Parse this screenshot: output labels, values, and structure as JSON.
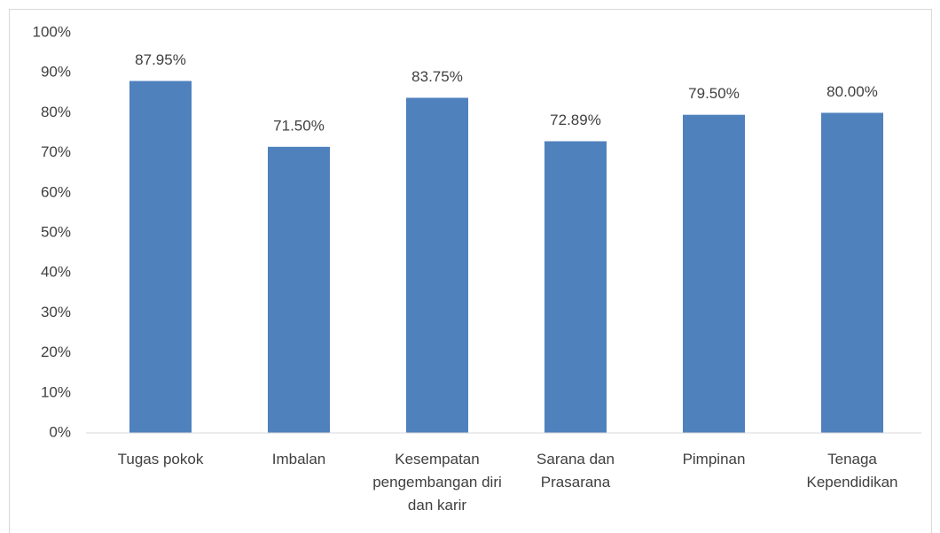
{
  "chart_data": {
    "type": "bar",
    "categories": [
      "Tugas pokok",
      "Imbalan",
      "Kesempatan pengembangan diri dan karir",
      "Sarana dan Prasarana",
      "Pimpinan",
      "Tenaga Kependidikan"
    ],
    "values": [
      87.95,
      71.5,
      83.75,
      72.89,
      79.5,
      80.0
    ],
    "value_labels": [
      "87.95%",
      "71.50%",
      "83.75%",
      "72.89%",
      "79.50%",
      "80.00%"
    ],
    "color": "#4f81bd",
    "ylim": [
      0,
      100
    ],
    "yticks": [
      {
        "value": 0,
        "label": "0%"
      },
      {
        "value": 10,
        "label": "10%"
      },
      {
        "value": 20,
        "label": "20%"
      },
      {
        "value": 30,
        "label": "30%"
      },
      {
        "value": 40,
        "label": "40%"
      },
      {
        "value": 50,
        "label": "50%"
      },
      {
        "value": 60,
        "label": "60%"
      },
      {
        "value": 70,
        "label": "70%"
      },
      {
        "value": 80,
        "label": "80%"
      },
      {
        "value": 90,
        "label": "90%"
      },
      {
        "value": 100,
        "label": "100%"
      }
    ],
    "grid": false
  }
}
